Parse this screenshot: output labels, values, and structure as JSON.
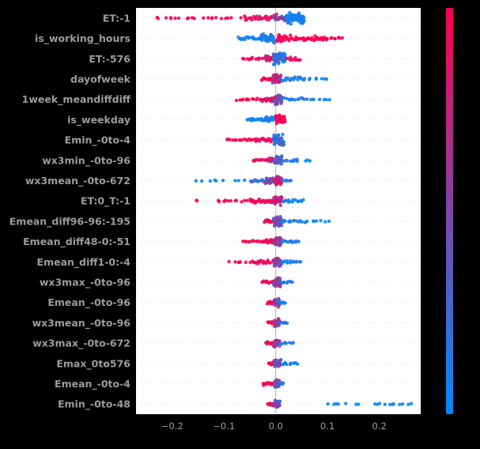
{
  "figure": {
    "background": "#000000",
    "plot_background": "#ffffff",
    "label_color": "#9b9b9b",
    "gridline_color": "#e0e0e0",
    "zero_line_color": "#b3b3b3",
    "colors": {
      "low": "#008bfb",
      "high": "#ff0051"
    }
  },
  "chart_data": {
    "type": "scatter",
    "subtype": "shap-beeswarm-summary",
    "title": "",
    "xlim": [
      -0.27,
      0.28
    ],
    "grid": "dotted-horizontal-per-feature",
    "legend_position": "colorbar-right",
    "xticks": [
      {
        "value": -0.2,
        "label": "−0.2"
      },
      {
        "value": -0.1,
        "label": "−0.1"
      },
      {
        "value": 0.0,
        "label": "0.0"
      },
      {
        "value": 0.1,
        "label": "0.1"
      },
      {
        "value": 0.2,
        "label": "0.2"
      }
    ],
    "colorbar": {
      "low_color": "#008bfb",
      "high_color": "#ff0051"
    },
    "features": [
      {
        "name": "ET:-1",
        "clusters": [
          [
            -0.235,
            -0.06,
            22,
            1,
            1,
            1.2
          ],
          [
            -0.06,
            -0.005,
            25,
            0.85,
            1,
            3
          ],
          [
            -0.005,
            0.02,
            25,
            0.3,
            0.9,
            5
          ],
          [
            0.02,
            0.055,
            70,
            0,
            0.15,
            8
          ]
        ]
      },
      {
        "name": "is_working_hours",
        "clusters": [
          [
            -0.075,
            -0.03,
            18,
            0,
            0.1,
            2.5
          ],
          [
            -0.03,
            -0.002,
            30,
            0,
            0.2,
            6
          ],
          [
            0.002,
            0.02,
            20,
            0.9,
            1,
            5
          ],
          [
            0.02,
            0.1,
            40,
            1,
            1,
            4.5
          ],
          [
            0.1,
            0.13,
            8,
            1,
            1,
            1.5
          ]
        ]
      },
      {
        "name": "ET:-576",
        "clusters": [
          [
            -0.065,
            -0.02,
            14,
            0.9,
            1,
            1.5
          ],
          [
            -0.02,
            -0.005,
            18,
            0.6,
            1,
            4
          ],
          [
            -0.005,
            0.018,
            60,
            0,
            0.4,
            8
          ],
          [
            0.018,
            0.048,
            12,
            0.8,
            1,
            2
          ]
        ]
      },
      {
        "name": "dayofweek",
        "clusters": [
          [
            -0.028,
            -0.006,
            16,
            0.95,
            1,
            3
          ],
          [
            -0.006,
            0.01,
            45,
            0.5,
            1,
            7
          ],
          [
            0.01,
            0.055,
            18,
            0,
            0.2,
            3
          ],
          [
            0.055,
            0.1,
            8,
            0,
            0.1,
            1.2
          ]
        ]
      },
      {
        "name": "1week_meandiffdiff",
        "clusters": [
          [
            -0.075,
            -0.03,
            12,
            1,
            1,
            1.5
          ],
          [
            -0.03,
            -0.004,
            20,
            0.8,
            1,
            3.5
          ],
          [
            -0.004,
            0.012,
            40,
            0.3,
            0.8,
            7
          ],
          [
            0.012,
            0.06,
            14,
            0,
            0.2,
            2
          ],
          [
            0.06,
            0.105,
            7,
            0,
            0.1,
            1.2
          ]
        ]
      },
      {
        "name": "is_weekday",
        "clusters": [
          [
            -0.055,
            -0.025,
            14,
            0,
            0.1,
            2
          ],
          [
            -0.025,
            -0.002,
            25,
            0,
            0.2,
            4.5
          ],
          [
            0.0,
            0.018,
            45,
            0.9,
            1,
            6.5
          ]
        ]
      },
      {
        "name": "Emin_-0to-4",
        "clusters": [
          [
            -0.095,
            -0.04,
            16,
            1,
            1,
            1.3
          ],
          [
            -0.04,
            -0.005,
            20,
            0.85,
            1,
            2.5
          ],
          [
            -0.005,
            0.016,
            50,
            0,
            0.45,
            7.5
          ]
        ]
      },
      {
        "name": "wx3min_-0to-96",
        "clusters": [
          [
            -0.045,
            -0.015,
            12,
            0.9,
            1,
            1.5
          ],
          [
            -0.015,
            -0.002,
            16,
            0.7,
            1,
            3.5
          ],
          [
            -0.002,
            0.012,
            40,
            0.1,
            0.6,
            6.5
          ],
          [
            0.012,
            0.045,
            10,
            0,
            0.2,
            1.8
          ],
          [
            0.055,
            0.072,
            3,
            0,
            0,
            1
          ]
        ]
      },
      {
        "name": "wx3mean_-0to-672",
        "clusters": [
          [
            -0.155,
            -0.1,
            6,
            0,
            0.1,
            1
          ],
          [
            -0.085,
            -0.06,
            3,
            0,
            0,
            1
          ],
          [
            -0.05,
            -0.02,
            14,
            0,
            0.3,
            2.2
          ],
          [
            -0.02,
            -0.002,
            22,
            0.2,
            0.8,
            4.5
          ],
          [
            -0.002,
            0.012,
            35,
            0.5,
            1,
            6.5
          ],
          [
            0.012,
            0.03,
            6,
            0,
            0.2,
            1.2
          ]
        ]
      },
      {
        "name": "ET:0_T:-1",
        "clusters": [
          [
            -0.155,
            -0.148,
            2,
            1,
            1,
            1
          ],
          [
            -0.115,
            -0.05,
            12,
            1,
            1,
            1.2
          ],
          [
            -0.05,
            -0.004,
            28,
            0.9,
            1,
            3.2
          ],
          [
            -0.004,
            0.012,
            40,
            0.5,
            1,
            7
          ],
          [
            0.012,
            0.055,
            14,
            0,
            0.2,
            2
          ]
        ]
      },
      {
        "name": "Emean_diff96-96:-195",
        "clusters": [
          [
            -0.022,
            -0.004,
            12,
            0.9,
            1,
            2.5
          ],
          [
            -0.004,
            0.012,
            42,
            0.2,
            0.7,
            7
          ],
          [
            0.012,
            0.06,
            14,
            0,
            0.2,
            2
          ],
          [
            0.06,
            0.105,
            7,
            0,
            0.1,
            1.2
          ]
        ]
      },
      {
        "name": "Emean_diff48-0:-51",
        "clusters": [
          [
            -0.065,
            -0.025,
            12,
            1,
            1,
            1.3
          ],
          [
            -0.025,
            -0.003,
            18,
            0.85,
            1,
            3
          ],
          [
            -0.003,
            0.01,
            40,
            0.3,
            0.8,
            6.5
          ],
          [
            0.01,
            0.045,
            12,
            0,
            0.2,
            1.8
          ]
        ]
      },
      {
        "name": "Emean_diff1-0:-4",
        "clusters": [
          [
            -0.09,
            -0.045,
            8,
            1,
            1,
            1
          ],
          [
            -0.045,
            -0.004,
            18,
            0.9,
            1,
            2.5
          ],
          [
            -0.004,
            0.01,
            38,
            0.3,
            0.8,
            6.5
          ],
          [
            0.01,
            0.05,
            13,
            0,
            0.2,
            1.8
          ]
        ]
      },
      {
        "name": "wx3max_-0to-96",
        "clusters": [
          [
            -0.026,
            -0.004,
            14,
            0.9,
            1,
            2.5
          ],
          [
            -0.004,
            0.01,
            36,
            0.3,
            0.8,
            6
          ],
          [
            0.01,
            0.032,
            9,
            0,
            0.2,
            1.6
          ]
        ]
      },
      {
        "name": "Emean_-0to-96",
        "clusters": [
          [
            -0.016,
            -0.003,
            10,
            0.9,
            1,
            2.2
          ],
          [
            -0.003,
            0.007,
            32,
            0.2,
            0.7,
            6
          ],
          [
            0.007,
            0.02,
            7,
            0,
            0.2,
            1.5
          ]
        ]
      },
      {
        "name": "wx3mean_-0to-96",
        "clusters": [
          [
            -0.016,
            -0.003,
            11,
            0.9,
            1,
            2.2
          ],
          [
            -0.003,
            0.007,
            32,
            0.3,
            0.8,
            6
          ],
          [
            0.007,
            0.024,
            7,
            0,
            0.2,
            1.5
          ]
        ]
      },
      {
        "name": "wx3max_-0to-672",
        "clusters": [
          [
            -0.02,
            -0.004,
            10,
            0.9,
            1,
            2
          ],
          [
            -0.004,
            0.008,
            32,
            0.3,
            0.8,
            5.5
          ],
          [
            0.008,
            0.034,
            8,
            0,
            0.2,
            1.5
          ]
        ]
      },
      {
        "name": "Emax_0to576",
        "clusters": [
          [
            -0.015,
            -0.003,
            8,
            0.9,
            1,
            2
          ],
          [
            -0.003,
            0.01,
            32,
            0.2,
            0.6,
            6
          ],
          [
            0.01,
            0.045,
            10,
            0,
            0.15,
            1.6
          ]
        ]
      },
      {
        "name": "Emean_-0to-4",
        "clusters": [
          [
            -0.025,
            -0.003,
            12,
            0.9,
            1,
            2.2
          ],
          [
            -0.003,
            0.007,
            32,
            0.2,
            0.7,
            6
          ],
          [
            0.007,
            0.016,
            5,
            0,
            0.2,
            1.3
          ]
        ]
      },
      {
        "name": "Emin_-0to-48",
        "clusters": [
          [
            -0.016,
            -0.004,
            10,
            0.8,
            1,
            2.2
          ],
          [
            -0.004,
            0.008,
            34,
            0.2,
            0.8,
            5.5
          ],
          [
            0.1,
            0.135,
            5,
            0,
            0.1,
            1
          ],
          [
            0.148,
            0.16,
            2,
            0,
            0,
            1
          ],
          [
            0.185,
            0.235,
            7,
            0,
            0.1,
            1
          ],
          [
            0.24,
            0.262,
            4,
            0,
            0.1,
            1
          ]
        ]
      }
    ]
  }
}
